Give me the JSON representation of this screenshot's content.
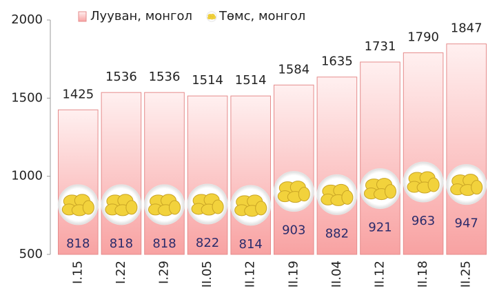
{
  "chart_data": {
    "type": "bar",
    "categories": [
      "I.15",
      "I.22",
      "I.29",
      "II.05",
      "II.12",
      "II.19",
      "II.04",
      "II.12",
      "II.18",
      "II.25"
    ],
    "series": [
      {
        "name": "Лууван, монгол",
        "type": "bar",
        "color": "#f7a5a5",
        "values": [
          1425,
          1536,
          1536,
          1514,
          1514,
          1584,
          1635,
          1731,
          1790,
          1847
        ]
      },
      {
        "name": "Төмс, монгол",
        "type": "marker",
        "color": "#f2d23c",
        "values": [
          818,
          818,
          818,
          822,
          814,
          903,
          882,
          921,
          963,
          947
        ]
      }
    ],
    "ylim": [
      500,
      2000
    ],
    "yticks": [
      500,
      1000,
      1500,
      2000
    ],
    "grid": false,
    "legend": "top"
  }
}
